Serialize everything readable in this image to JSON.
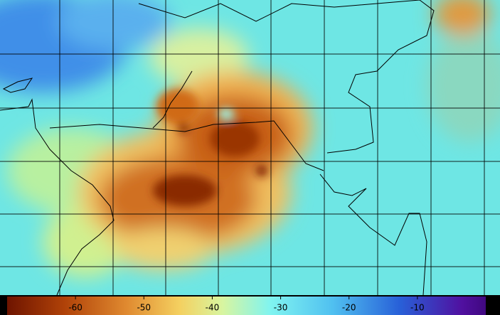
{
  "colorbar": {
    "range": [
      -70,
      0
    ],
    "ticks": [
      -60,
      -50,
      -40,
      -30,
      -20,
      -10
    ]
  }
}
